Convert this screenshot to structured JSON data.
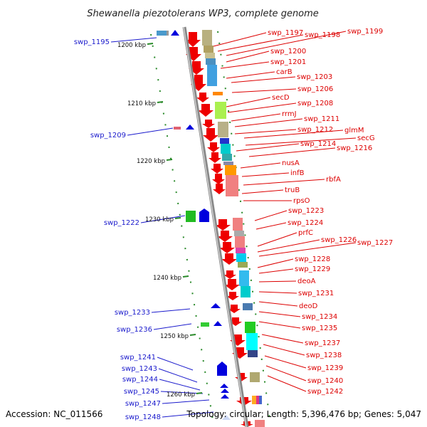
{
  "title": "Shewanella piezotolerans WP3, complete genome",
  "footer": {
    "accession": "Accession: NC_011566",
    "topology": "Topology: circular; Length: 5,396,476 bp; Genes: 5,047"
  },
  "colors": {
    "forward_gene": "#ee0000",
    "reverse_gene": "#0000dd",
    "right_label": "#dd0000",
    "left_label": "#1a1acc",
    "tick": "#2a8a2a",
    "axis": "#888888"
  },
  "kbp_ticks": [
    "1200 kbp",
    "1210 kbp",
    "1220 kbp",
    "1230 kbp",
    "1240 kbp",
    "1250 kbp",
    "1260 kbp"
  ],
  "right_labels": [
    "swp_1197",
    "swp_1198",
    "swp_1199",
    "swp_1200",
    "swp_1201",
    "carB",
    "swp_1203",
    "swp_1206",
    "secD",
    "swp_1208",
    "rrmJ",
    "swp_1211",
    "swp_1212",
    "glmM",
    "secG",
    "swp_1214",
    "swp_1216",
    "nusA",
    "infB",
    "rbfA",
    "truB",
    "rpsO",
    "swp_1223",
    "swp_1224",
    "prfC",
    "swp_1226",
    "swp_1227",
    "swp_1228",
    "swp_1229",
    "deoA",
    "swp_1231",
    "deoD",
    "swp_1234",
    "swp_1235",
    "swp_1237",
    "swp_1238",
    "swp_1239",
    "swp_1240",
    "swp_1242"
  ],
  "left_labels": [
    "swp_1195",
    "swp_1209",
    "swp_1222",
    "swp_1233",
    "swp_1236",
    "swp_1241",
    "swp_1243",
    "swp_1244",
    "swp_1245",
    "swp_1247",
    "swp_1248"
  ]
}
